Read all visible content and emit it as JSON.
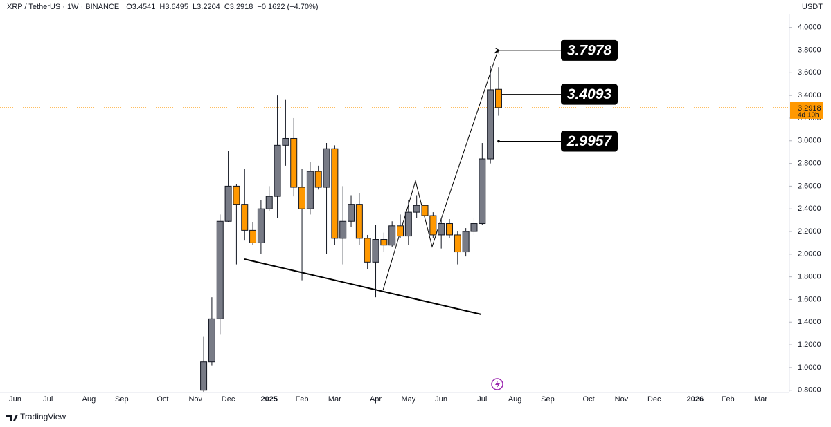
{
  "header": {
    "symbol": "XRP / TetherUS · 1W · BINANCE",
    "ohlc_labels": [
      "O",
      "H",
      "L",
      "C"
    ],
    "change": "−0.1622 (−4.70%)"
  },
  "currency": "USDT",
  "countdown": "4d 10h",
  "footer": "TradingView",
  "chart_data": {
    "type": "candlestick",
    "up_color": "#787b86",
    "down_color": "#ff9800",
    "last_price_color": "#ff9800",
    "categories": [
      "Jun",
      null,
      null,
      null,
      "Jul",
      null,
      null,
      null,
      null,
      "Aug",
      null,
      null,
      null,
      "Sep",
      null,
      null,
      null,
      null,
      "Oct",
      null,
      null,
      null,
      "Nov",
      null,
      null,
      null,
      "Dec",
      null,
      null,
      null,
      null,
      "2025",
      null,
      null,
      null,
      "Feb",
      null,
      null,
      null,
      "Mar",
      null,
      null,
      null,
      null,
      "Apr",
      null,
      null,
      null,
      "May",
      null,
      null,
      null,
      "Jun",
      null,
      null,
      null,
      null,
      "Jul",
      null,
      null,
      null,
      "Aug",
      null,
      null,
      null,
      "Sep",
      null,
      null,
      null,
      null,
      "Oct",
      null,
      null,
      null,
      "Nov",
      null,
      null,
      null,
      "Dec",
      null,
      null,
      null,
      null,
      "2026",
      null,
      null,
      null,
      "Feb",
      null,
      null,
      null,
      "Mar"
    ],
    "open": [
      null,
      null,
      null,
      null,
      null,
      null,
      null,
      null,
      null,
      null,
      null,
      null,
      null,
      null,
      null,
      null,
      null,
      null,
      null,
      null,
      null,
      null,
      null,
      0.8,
      1.05,
      1.43,
      2.29,
      2.6,
      2.44,
      2.21,
      2.1,
      2.4,
      2.51,
      2.96,
      3.02,
      2.59,
      2.4,
      2.73,
      2.59,
      2.93,
      2.14,
      2.29,
      2.44,
      2.14,
      1.93,
      2.13,
      2.08,
      2.25,
      2.16,
      2.37,
      2.43,
      2.34,
      2.17,
      2.27,
      2.17,
      2.02,
      2.2,
      2.27,
      2.84,
      3.4541,
      null,
      null,
      null,
      null,
      null,
      null,
      null,
      null,
      null,
      null,
      null,
      null,
      null,
      null,
      null,
      null,
      null,
      null,
      null,
      null,
      null,
      null,
      null,
      null,
      null,
      null,
      null,
      null,
      null,
      null,
      null,
      null
    ],
    "high": [
      null,
      null,
      null,
      null,
      null,
      null,
      null,
      null,
      null,
      null,
      null,
      null,
      null,
      null,
      null,
      null,
      null,
      null,
      null,
      null,
      null,
      null,
      null,
      1.27,
      1.62,
      2.35,
      2.91,
      2.62,
      2.75,
      2.28,
      2.48,
      2.6,
      3.4,
      3.36,
      3.2,
      2.75,
      2.81,
      2.78,
      2.98,
      2.96,
      2.6,
      2.52,
      2.54,
      2.17,
      2.26,
      2.19,
      2.29,
      2.35,
      2.48,
      2.52,
      2.48,
      2.37,
      2.32,
      2.31,
      2.2,
      2.23,
      2.32,
      2.98,
      3.66,
      3.6495,
      null,
      null,
      null,
      null,
      null,
      null,
      null,
      null,
      null,
      null,
      null,
      null,
      null,
      null,
      null,
      null,
      null,
      null,
      null,
      null,
      null,
      null,
      null,
      null,
      null,
      null,
      null,
      null,
      null,
      null,
      null,
      null
    ],
    "low": [
      null,
      null,
      null,
      null,
      null,
      null,
      null,
      null,
      null,
      null,
      null,
      null,
      null,
      null,
      null,
      null,
      null,
      null,
      null,
      null,
      null,
      null,
      null,
      0.75,
      1.02,
      1.29,
      2.28,
      1.91,
      2.12,
      2.08,
      2.0,
      2.38,
      2.32,
      2.78,
      2.51,
      1.77,
      2.35,
      2.57,
      2.0,
      2.08,
      1.91,
      2.24,
      2.08,
      1.87,
      1.62,
      2.02,
      2.06,
      2.14,
      2.08,
      2.32,
      2.3,
      2.14,
      2.05,
      2.14,
      1.91,
      1.98,
      2.17,
      2.26,
      2.8,
      3.2204,
      null,
      null,
      null,
      null,
      null,
      null,
      null,
      null,
      null,
      null,
      null,
      null,
      null,
      null,
      null,
      null,
      null,
      null,
      null,
      null,
      null,
      null,
      null,
      null,
      null,
      null,
      null,
      null,
      null,
      null,
      null,
      null
    ],
    "close": [
      null,
      null,
      null,
      null,
      null,
      null,
      null,
      null,
      null,
      null,
      null,
      null,
      null,
      null,
      null,
      null,
      null,
      null,
      null,
      null,
      null,
      null,
      null,
      1.05,
      1.43,
      2.29,
      2.6,
      2.44,
      2.21,
      2.1,
      2.4,
      2.51,
      2.96,
      3.02,
      2.59,
      2.4,
      2.73,
      2.59,
      2.93,
      2.14,
      2.29,
      2.44,
      2.14,
      1.93,
      2.13,
      2.08,
      2.25,
      2.16,
      2.37,
      2.43,
      2.34,
      2.17,
      2.27,
      2.17,
      2.02,
      2.2,
      2.27,
      2.84,
      3.45,
      3.2918,
      null,
      null,
      null,
      null,
      null,
      null,
      null,
      null,
      null,
      null,
      null,
      null,
      null,
      null,
      null,
      null,
      null,
      null,
      null,
      null,
      null,
      null,
      null,
      null,
      null,
      null,
      null,
      null,
      null,
      null,
      null,
      null
    ],
    "ylim": [
      0.78,
      4.12
    ],
    "yticks": [
      {
        "value": 0.8,
        "label": "0.8000"
      },
      {
        "value": 1,
        "label": "1.0000"
      },
      {
        "value": 1.2,
        "label": "1.2000"
      },
      {
        "value": 1.4,
        "label": "1.4000"
      },
      {
        "value": 1.6,
        "label": "1.6000"
      },
      {
        "value": 1.8,
        "label": "1.8000"
      },
      {
        "value": 2,
        "label": "2.0000"
      },
      {
        "value": 2.2,
        "label": "2.2000"
      },
      {
        "value": 2.4,
        "label": "2.4000"
      },
      {
        "value": 2.6,
        "label": "2.6000"
      },
      {
        "value": 2.8,
        "label": "2.8000"
      },
      {
        "value": 3,
        "label": "3.0000"
      },
      {
        "value": 3.2,
        "label": "3.2000"
      },
      {
        "value": 3.4,
        "label": "3.4000"
      },
      {
        "value": 3.6,
        "label": "3.6000"
      },
      {
        "value": 3.8,
        "label": "3.8000"
      },
      {
        "value": 4,
        "label": "4.0000"
      }
    ],
    "price_labels": [
      3.7978,
      3.4093,
      2.9957
    ]
  }
}
